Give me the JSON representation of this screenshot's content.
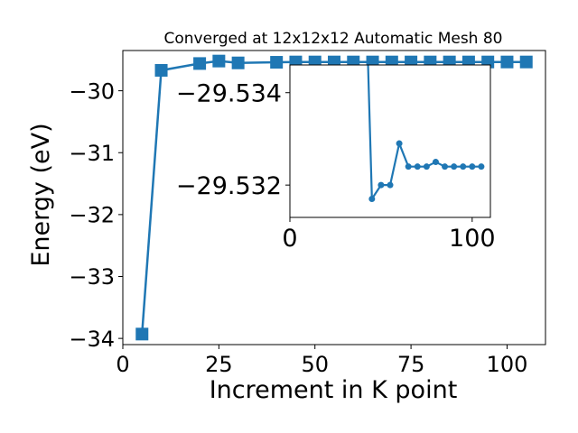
{
  "chart_data": [
    {
      "type": "line",
      "title": "Converged at 12x12x12 Automatic Mesh 80",
      "xlabel": "Increment in K point",
      "ylabel": "Energy (eV)",
      "xlim": [
        0,
        110
      ],
      "ylim": [
        -34.1,
        -29.35
      ],
      "xticks": [
        0,
        25,
        50,
        75,
        100
      ],
      "xtick_labels": [
        "0",
        "25",
        "50",
        "75",
        "100"
      ],
      "yticks": [
        -34,
        -33,
        -32,
        -31,
        -30
      ],
      "ytick_labels": [
        "−34",
        "−33",
        "−32",
        "−31",
        "−30"
      ],
      "grid": false,
      "marker": "square",
      "color": "#1f77b4",
      "series": [
        {
          "x": [
            5,
            10,
            20,
            25,
            30,
            40,
            45,
            50,
            55,
            60,
            65,
            70,
            75,
            80,
            85,
            90,
            95,
            100,
            105
          ],
          "y": [
            -33.93,
            -29.67,
            -29.56,
            -29.52,
            -29.55,
            -29.54,
            -29.535,
            -29.535,
            -29.535,
            -29.535,
            -29.535,
            -29.535,
            -29.535,
            -29.535,
            -29.535,
            -29.535,
            -29.535,
            -29.535,
            -29.535
          ]
        }
      ]
    },
    {
      "type": "line",
      "inset": true,
      "xlim": [
        0,
        110
      ],
      "ylim": [
        -29.5313,
        -29.5346
      ],
      "xticks": [
        0,
        100
      ],
      "xtick_labels": [
        "0",
        "100"
      ],
      "yticks": [
        -29.534,
        -29.532
      ],
      "ytick_labels": [
        "−29.534",
        "−29.532"
      ],
      "marker": "circle",
      "color": "#1f77b4",
      "series": [
        {
          "x": [
            42,
            45,
            50,
            55,
            60,
            65,
            70,
            75,
            80,
            85,
            90,
            95,
            100,
            105
          ],
          "y": [
            -29.5358,
            -29.5317,
            -29.532,
            -29.532,
            -29.5329,
            -29.5324,
            -29.5324,
            -29.5324,
            -29.5325,
            -29.5324,
            -29.5324,
            -29.5324,
            -29.5324,
            -29.5324
          ]
        }
      ]
    }
  ]
}
